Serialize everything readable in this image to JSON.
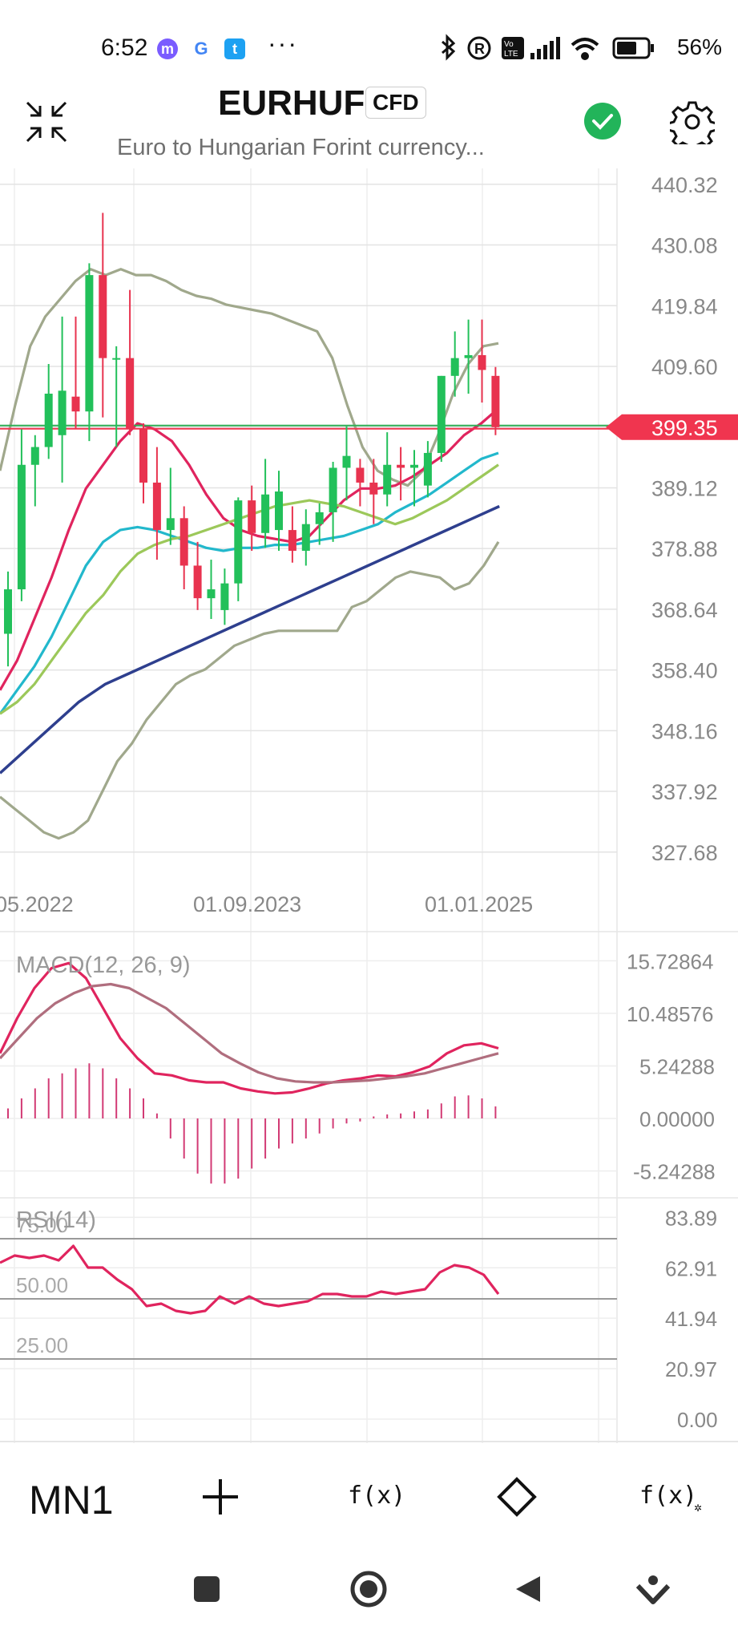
{
  "status_bar": {
    "time": "6:52",
    "battery": "56%",
    "icons": [
      "messenger-icon",
      "google-icon",
      "twitter-icon",
      "more-dots-icon",
      "bluetooth-icon",
      "registered-icon",
      "volte-icon",
      "signal-icon",
      "wifi-icon",
      "battery-icon"
    ]
  },
  "header": {
    "symbol": "EURHUF",
    "badge": "CFD",
    "subtitle": "Euro to Hungarian Forint currency...",
    "status_color": "#22b45a"
  },
  "chart_data": [
    {
      "type": "candlestick",
      "title": "",
      "interval": "MN1",
      "x_tick_labels": [
        "05.2022",
        "01.09.2023",
        "01.01.2025"
      ],
      "y_tick_labels": [
        "440.32",
        "430.08",
        "419.84",
        "409.60",
        "399.35",
        "389.12",
        "378.88",
        "368.64",
        "358.40",
        "348.16",
        "337.92",
        "327.68"
      ],
      "ylim": [
        324.0,
        443.0
      ],
      "current_price": "399.35",
      "current_price_value": 399.35,
      "colors": {
        "up": "#22c05a",
        "down": "#e8334f",
        "price_tag": "#f0354f"
      },
      "candles": [
        {
          "o": 364.5,
          "h": 375.0,
          "l": 359.0,
          "c": 372.0
        },
        {
          "o": 372.0,
          "h": 399.0,
          "l": 370.0,
          "c": 393.0
        },
        {
          "o": 393.0,
          "h": 398.0,
          "l": 386.0,
          "c": 396.0
        },
        {
          "o": 396.0,
          "h": 410.0,
          "l": 394.0,
          "c": 405.0
        },
        {
          "o": 398.0,
          "h": 418.0,
          "l": 390.0,
          "c": 405.5
        },
        {
          "o": 404.5,
          "h": 418.0,
          "l": 399.0,
          "c": 402.0
        },
        {
          "o": 402.0,
          "h": 427.0,
          "l": 397.0,
          "c": 425.0
        },
        {
          "o": 425.0,
          "h": 435.5,
          "l": 401.0,
          "c": 411.0
        },
        {
          "o": 411.0,
          "h": 413.0,
          "l": 396.0,
          "c": 411.0
        },
        {
          "o": 411.0,
          "h": 422.5,
          "l": 398.0,
          "c": 399.0
        },
        {
          "o": 399.0,
          "h": 400.0,
          "l": 386.5,
          "c": 390.0
        },
        {
          "o": 390.0,
          "h": 396.0,
          "l": 377.0,
          "c": 382.0
        },
        {
          "o": 382.0,
          "h": 392.5,
          "l": 379.5,
          "c": 384.0
        },
        {
          "o": 384.0,
          "h": 386.0,
          "l": 372.0,
          "c": 376.0
        },
        {
          "o": 376.0,
          "h": 380.0,
          "l": 368.5,
          "c": 370.5
        },
        {
          "o": 370.5,
          "h": 377.0,
          "l": 367.0,
          "c": 372.0
        },
        {
          "o": 368.5,
          "h": 375.5,
          "l": 366.0,
          "c": 373.0
        },
        {
          "o": 373.0,
          "h": 387.5,
          "l": 370.0,
          "c": 387.0
        },
        {
          "o": 387.0,
          "h": 389.5,
          "l": 378.5,
          "c": 381.5
        },
        {
          "o": 381.5,
          "h": 394.0,
          "l": 379.0,
          "c": 388.0
        },
        {
          "o": 382.0,
          "h": 392.0,
          "l": 378.5,
          "c": 388.5
        },
        {
          "o": 382.0,
          "h": 386.0,
          "l": 376.5,
          "c": 378.5
        },
        {
          "o": 378.5,
          "h": 385.5,
          "l": 376.0,
          "c": 383.0
        },
        {
          "o": 383.0,
          "h": 386.5,
          "l": 379.5,
          "c": 385.0
        },
        {
          "o": 385.0,
          "h": 393.5,
          "l": 380.0,
          "c": 392.5
        },
        {
          "o": 392.5,
          "h": 399.5,
          "l": 387.0,
          "c": 394.5
        },
        {
          "o": 392.5,
          "h": 394.0,
          "l": 386.0,
          "c": 390.0
        },
        {
          "o": 390.0,
          "h": 394.0,
          "l": 383.0,
          "c": 388.0
        },
        {
          "o": 388.0,
          "h": 398.5,
          "l": 386.0,
          "c": 393.0
        },
        {
          "o": 393.0,
          "h": 396.0,
          "l": 387.0,
          "c": 392.5
        },
        {
          "o": 392.5,
          "h": 395.5,
          "l": 386.0,
          "c": 393.0
        },
        {
          "o": 389.5,
          "h": 397.0,
          "l": 387.5,
          "c": 395.0
        },
        {
          "o": 395.0,
          "h": 408.0,
          "l": 393.5,
          "c": 408.0
        },
        {
          "o": 408.0,
          "h": 415.5,
          "l": 404.5,
          "c": 411.0
        },
        {
          "o": 411.0,
          "h": 417.5,
          "l": 405.0,
          "c": 411.5
        },
        {
          "o": 411.5,
          "h": 417.5,
          "l": 403.5,
          "c": 409.0
        },
        {
          "o": 408.0,
          "h": 409.5,
          "l": 398.0,
          "c": 399.35
        }
      ],
      "indicators": [
        {
          "name": "bollinger_upper",
          "color": "#a0a88c",
          "values": [
            392,
            403,
            413,
            418,
            421,
            424,
            426,
            425,
            426,
            425,
            425,
            424,
            422.5,
            421.5,
            421,
            420,
            419.5,
            419,
            418.5,
            417.5,
            416.5,
            415.5,
            411,
            403,
            396,
            392,
            390.5,
            389.5,
            392,
            398,
            405,
            410,
            413,
            413.5
          ]
        },
        {
          "name": "bollinger_lower",
          "color": "#a0a88c",
          "values": [
            337,
            335,
            333,
            331,
            330,
            331,
            333,
            338,
            343,
            346,
            350,
            353,
            356,
            357.5,
            358.5,
            360.5,
            362.5,
            363.5,
            364.5,
            365,
            365,
            365,
            365,
            365,
            369,
            370,
            372,
            374,
            375,
            374.5,
            374,
            372,
            373,
            376,
            380
          ]
        },
        {
          "name": "ma_red",
          "color": "#e0245e",
          "values": [
            355,
            360,
            367,
            374,
            382,
            389,
            393,
            397,
            400,
            399,
            397,
            393,
            388,
            384,
            382,
            381,
            380.5,
            380,
            381,
            384,
            387,
            389,
            389,
            389.5,
            391,
            393,
            395,
            398,
            400,
            402.5
          ]
        },
        {
          "name": "ma_cyan",
          "color": "#22b8cc",
          "values": [
            351,
            355,
            359,
            364,
            370,
            376,
            380,
            382,
            382.5,
            382,
            381,
            380,
            379,
            378.5,
            379,
            379,
            379.5,
            379.5,
            380,
            380.5,
            381,
            382,
            383,
            385,
            386.5,
            388,
            390,
            392,
            394,
            395
          ]
        },
        {
          "name": "ma_green",
          "color": "#9cc85a",
          "values": [
            351,
            353,
            356,
            360,
            364,
            368,
            371,
            375,
            378,
            379.5,
            380.5,
            381,
            382,
            383,
            384,
            385,
            386,
            386.5,
            387,
            386.5,
            386,
            385,
            384,
            383,
            384,
            385.5,
            387,
            389,
            391,
            393
          ]
        },
        {
          "name": "ma_navy",
          "color": "#2e3f8e",
          "values": [
            341,
            345,
            349,
            353,
            356,
            358,
            360,
            362,
            364,
            366,
            368,
            370,
            372,
            374,
            376,
            378,
            380,
            382,
            384,
            386
          ]
        }
      ],
      "horizontal_lines": [
        399.35
      ]
    },
    {
      "type": "line",
      "title": "MACD(12, 26, 9)",
      "y_tick_labels": [
        "15.72864",
        "10.48576",
        "5.24288",
        "0.00000",
        "-5.24288"
      ],
      "ylim": [
        -8,
        18
      ],
      "series": [
        {
          "name": "MACD",
          "color": "#e0245e",
          "values": [
            6.5,
            10,
            13,
            15,
            15.5,
            14,
            11,
            8,
            6,
            4.5,
            4.3,
            3.8,
            3.6,
            3.6,
            3.0,
            2.7,
            2.5,
            2.6,
            3,
            3.5,
            3.8,
            4,
            4.3,
            4.2,
            4.6,
            5.2,
            6.5,
            7.3,
            7.5,
            7
          ]
        },
        {
          "name": "Signal",
          "color": "#b06e7e",
          "values": [
            6,
            8,
            10,
            11.5,
            12.5,
            13.2,
            13.4,
            13,
            12,
            11,
            9.5,
            8,
            6.5,
            5.5,
            4.6,
            4,
            3.7,
            3.6,
            3.6,
            3.7,
            3.8,
            4,
            4.2,
            4.5,
            5,
            5.5,
            6,
            6.5
          ]
        }
      ],
      "histogram": {
        "color": "#d23a74",
        "values": [
          1,
          2,
          3,
          4,
          4.5,
          5,
          5.5,
          5,
          4,
          3,
          2,
          0.5,
          -2,
          -4,
          -5.5,
          -6.5,
          -6.5,
          -6,
          -5,
          -4,
          -3,
          -2.5,
          -2,
          -1.5,
          -1,
          -0.5,
          -0.3,
          0.2,
          0.4,
          0.5,
          0.7,
          0.9,
          1.5,
          2.2,
          2.3,
          2,
          1.2
        ]
      }
    },
    {
      "type": "line",
      "title": "RSI(14)",
      "levels": [
        "75.00",
        "50.00",
        "25.00"
      ],
      "y_tick_labels": [
        "83.89",
        "62.91",
        "41.94",
        "20.97",
        "0.00"
      ],
      "ylim": [
        0,
        90
      ],
      "series": [
        {
          "name": "RSI",
          "color": "#e0245e",
          "values": [
            65,
            68,
            67,
            68,
            66,
            72,
            63,
            63,
            58,
            54,
            47,
            48,
            45,
            44,
            45,
            51,
            48,
            51,
            48,
            47,
            48,
            49,
            52,
            52,
            51,
            51,
            53,
            52,
            53,
            54,
            61,
            64,
            63,
            60,
            52
          ]
        }
      ]
    }
  ],
  "toolbar": {
    "timeframe": "MN1",
    "items": [
      "add-icon",
      "function-icon",
      "drawing-icon",
      "indicator-settings-icon"
    ],
    "function_label": "f(x)",
    "settings_label": "f(x)"
  }
}
